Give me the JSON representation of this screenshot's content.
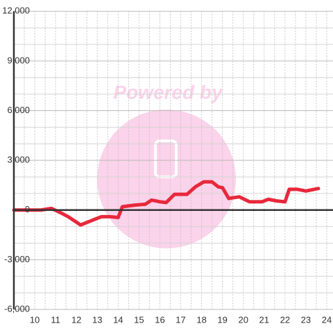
{
  "chart_data": {
    "type": "line",
    "watermark": "Powered by",
    "x": [
      9.0,
      10.3,
      10.8,
      11.3,
      11.6,
      12.2,
      12.8,
      13.2,
      13.6,
      14.0,
      14.2,
      14.8,
      15.3,
      15.6,
      16.0,
      16.3,
      16.7,
      17.3,
      17.7,
      18.1,
      18.5,
      18.8,
      19.0,
      19.3,
      19.8,
      20.3,
      20.9,
      21.2,
      21.6,
      22.0,
      22.2,
      22.6,
      23.0,
      23.6
    ],
    "series": [
      {
        "color": "#e8283c",
        "values": [
          0,
          0,
          100,
          -200,
          -400,
          -900,
          -600,
          -400,
          -400,
          -450,
          200,
          300,
          350,
          600,
          500,
          450,
          950,
          950,
          1400,
          1700,
          1700,
          1400,
          1350,
          700,
          800,
          500,
          500,
          650,
          550,
          500,
          1250,
          1250,
          1150,
          1300
        ]
      }
    ],
    "xlim": [
      9,
      24.3
    ],
    "ylim": [
      -6000,
      12000
    ],
    "xticks": [
      10,
      11,
      12,
      13,
      14,
      15,
      16,
      17,
      18,
      19,
      20,
      21,
      22,
      23,
      24
    ],
    "yticks": [
      {
        "value": -6000,
        "label": "-6,000"
      },
      {
        "value": -3000,
        "label": "-3,000"
      },
      0,
      {
        "value": 3000,
        "label": "3,000"
      },
      {
        "value": 6000,
        "label": "6,000"
      },
      {
        "value": 9000,
        "label": "9,000"
      },
      {
        "value": 12000,
        "label": "12,000"
      }
    ],
    "y_minor_ticks": [
      -5000,
      -4000,
      -2000,
      -1000,
      1000,
      2000,
      4000,
      5000,
      7000,
      8000,
      10000,
      11000
    ],
    "x_minor_ticks": [
      9.5,
      10.5,
      11.5,
      12.5,
      13.5,
      14.5,
      15.5,
      16.5,
      17.5,
      18.5,
      19.5,
      20.5,
      21.5,
      22.5,
      23.5
    ],
    "grid": true
  }
}
